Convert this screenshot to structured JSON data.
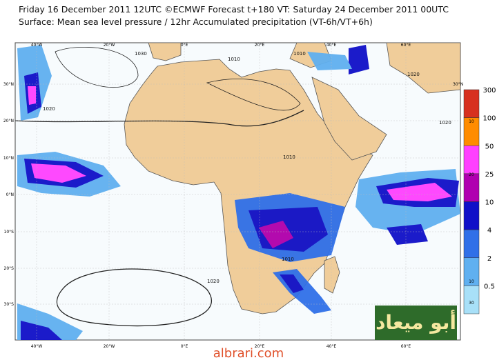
{
  "header": {
    "line1": "Friday 16 December 2011 12UTC ©ECMWF Forecast t+180 VT: Saturday 24 December 2011 00UTC",
    "line2": "Surface: Mean sea level pressure / 12hr Accumulated precipitation (VT-6h/VT+6h)"
  },
  "map": {
    "lon_labels": [
      "40°W",
      "20°W",
      "0°E",
      "20°E",
      "40°E",
      "60°E"
    ],
    "bottom_lon_labels": [
      "40°W",
      "20°W",
      "0°E",
      "20°E",
      "40°E",
      "60°E"
    ],
    "lat_labels": [
      "30°N",
      "20°N",
      "10°N",
      "0°N",
      "10°S",
      "20°S",
      "30°S"
    ],
    "right_lat_label": "30°N",
    "isobar_labels": [
      "1030",
      "1020",
      "1020",
      "1010",
      "1010",
      "1010",
      "1010",
      "1020",
      "1020"
    ]
  },
  "legend": {
    "levels": [
      300,
      100,
      50,
      25,
      10,
      4,
      2,
      0.5
    ],
    "colors": [
      "#d7301f",
      "#ff8c00",
      "#ff40ff",
      "#b000b0",
      "#1010c8",
      "#3070e8",
      "#60b0f0",
      "#a8e0f8"
    ],
    "inner_labels": [
      "10",
      "20",
      "10",
      "30"
    ]
  },
  "watermark": {
    "text": "أبو ميعاد",
    "site": "albrari.com"
  }
}
